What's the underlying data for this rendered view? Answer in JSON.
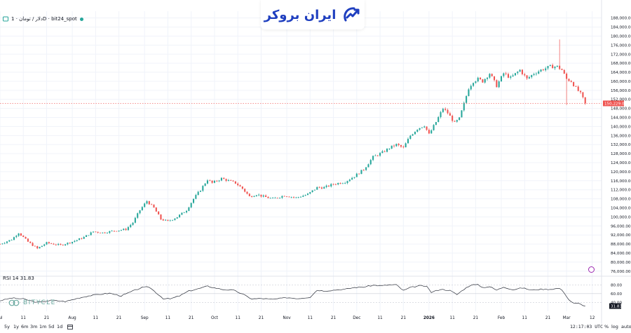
{
  "header": {
    "symbol_text": "دلار / تومان · 1D · bit24_spot",
    "logo_text": "ایران بروکر"
  },
  "watermark": {
    "text": "BITYCLE"
  },
  "indicator": {
    "label": "RSI 14",
    "value": "31.83",
    "levels": [
      80,
      60,
      40
    ]
  },
  "timeframes": [
    "5y",
    "1y",
    "6m",
    "3m",
    "1m",
    "5d",
    "1d"
  ],
  "status": {
    "clock": "12:17:03 UTC",
    "percent": "%",
    "log": "log",
    "auto": "auto"
  },
  "colors": {
    "up": "#26a69a",
    "down": "#ef5350",
    "rsi_line": "#2a2e39",
    "grid": "#f0f3fa"
  },
  "chart_data": {
    "type": "candlestick",
    "ylim": [
      75000,
      191000
    ],
    "y_ticks": [
      76000,
      80000,
      84000,
      88000,
      92000,
      96000,
      100000,
      104000,
      108000,
      112000,
      116000,
      120000,
      124000,
      128000,
      132000,
      136000,
      140000,
      144000,
      148000,
      152000,
      156000,
      160000,
      164000,
      168000,
      172000,
      176000,
      180000,
      184000,
      188000
    ],
    "y_tick_labels": [
      "76,000.00",
      "80,000.00",
      "84,000.00",
      "88,000.00",
      "92,000.00",
      "96,000.00",
      "100,000.00",
      "104,000.00",
      "108,000.00",
      "112,000.00",
      "116,000.00",
      "120,000.00",
      "124,000.00",
      "128,000.00",
      "132,000.00",
      "136,000.00",
      "140,000.00",
      "144,000.00",
      "148,000.00",
      "152,000.00",
      "156,000.00",
      "160,000.00",
      "164,000.00",
      "168,000.00",
      "172,000.00",
      "176,000.00",
      "180,000.00",
      "184,000.00",
      "188,000.00"
    ],
    "x_ticks": [
      {
        "label": "Jul",
        "day": 0
      },
      {
        "label": "11",
        "day": 10
      },
      {
        "label": "21",
        "day": 20
      },
      {
        "label": "Aug",
        "day": 31
      },
      {
        "label": "11",
        "day": 41
      },
      {
        "label": "21",
        "day": 51
      },
      {
        "label": "Sep",
        "day": 62
      },
      {
        "label": "11",
        "day": 72
      },
      {
        "label": "21",
        "day": 82
      },
      {
        "label": "Oct",
        "day": 92
      },
      {
        "label": "11",
        "day": 102
      },
      {
        "label": "21",
        "day": 112
      },
      {
        "label": "Nov",
        "day": 123
      },
      {
        "label": "11",
        "day": 133
      },
      {
        "label": "21",
        "day": 143
      },
      {
        "label": "Dec",
        "day": 153
      },
      {
        "label": "11",
        "day": 163
      },
      {
        "label": "21",
        "day": 173
      },
      {
        "label": "2026",
        "day": 184
      },
      {
        "label": "11",
        "day": 194
      },
      {
        "label": "21",
        "day": 204
      },
      {
        "label": "Feb",
        "day": 215
      },
      {
        "label": "11",
        "day": 225
      },
      {
        "label": "21",
        "day": 235
      },
      {
        "label": "Mar",
        "day": 243
      },
      {
        "label": "12",
        "day": 254
      }
    ],
    "last_price": 150229,
    "last_price_label": "150,229.00",
    "anchors": [
      [
        0,
        88000
      ],
      [
        5,
        90000
      ],
      [
        8,
        93000
      ],
      [
        12,
        89000
      ],
      [
        16,
        86000
      ],
      [
        20,
        88500
      ],
      [
        26,
        87500
      ],
      [
        31,
        89000
      ],
      [
        36,
        91000
      ],
      [
        40,
        93500
      ],
      [
        44,
        93000
      ],
      [
        50,
        94000
      ],
      [
        54,
        94500
      ],
      [
        57,
        97500
      ],
      [
        60,
        103000
      ],
      [
        63,
        107000
      ],
      [
        66,
        104000
      ],
      [
        69,
        99000
      ],
      [
        72,
        98000
      ],
      [
        76,
        100000
      ],
      [
        80,
        103000
      ],
      [
        83,
        108000
      ],
      [
        86,
        112000
      ],
      [
        89,
        116500
      ],
      [
        91,
        115000
      ],
      [
        95,
        117000
      ],
      [
        98,
        116000
      ],
      [
        101,
        115000
      ],
      [
        104,
        112500
      ],
      [
        107,
        109000
      ],
      [
        110,
        110000
      ],
      [
        113,
        109000
      ],
      [
        117,
        108000
      ],
      [
        122,
        109500
      ],
      [
        127,
        108500
      ],
      [
        132,
        110000
      ],
      [
        136,
        113000
      ],
      [
        139,
        113000
      ],
      [
        143,
        114500
      ],
      [
        148,
        115500
      ],
      [
        152,
        118000
      ],
      [
        156,
        121000
      ],
      [
        160,
        126500
      ],
      [
        164,
        128500
      ],
      [
        167,
        130500
      ],
      [
        170,
        132000
      ],
      [
        173,
        130500
      ],
      [
        176,
        136000
      ],
      [
        179,
        139000
      ],
      [
        182,
        140500
      ],
      [
        184,
        136500
      ],
      [
        187,
        142000
      ],
      [
        190,
        148000
      ],
      [
        192,
        146000
      ],
      [
        195,
        141500
      ],
      [
        197,
        143500
      ],
      [
        199,
        150000
      ],
      [
        201,
        157000
      ],
      [
        203,
        160000
      ],
      [
        205,
        161000
      ],
      [
        207,
        160000
      ],
      [
        210,
        163500
      ],
      [
        213,
        158000
      ],
      [
        216,
        163500
      ],
      [
        219,
        161500
      ],
      [
        223,
        165000
      ],
      [
        226,
        161000
      ],
      [
        229,
        163500
      ],
      [
        232,
        165000
      ],
      [
        236,
        166500
      ],
      [
        239,
        166500
      ],
      [
        241,
        165000
      ],
      [
        243,
        161000
      ],
      [
        245,
        160000
      ],
      [
        247,
        157000
      ],
      [
        249,
        154500
      ],
      [
        251,
        150229
      ]
    ],
    "spikes": [
      {
        "day": 240,
        "high": 178500,
        "low": 165000
      },
      {
        "day": 243,
        "high": 163000,
        "low": 149500
      }
    ],
    "rsi_anchors": [
      [
        0,
        44
      ],
      [
        5,
        50
      ],
      [
        10,
        48
      ],
      [
        16,
        40
      ],
      [
        22,
        45
      ],
      [
        28,
        42
      ],
      [
        33,
        49
      ],
      [
        38,
        55
      ],
      [
        42,
        58
      ],
      [
        47,
        61
      ],
      [
        52,
        55
      ],
      [
        57,
        66
      ],
      [
        61,
        74
      ],
      [
        64,
        75
      ],
      [
        67,
        62
      ],
      [
        70,
        49
      ],
      [
        73,
        48
      ],
      [
        77,
        55
      ],
      [
        81,
        66
      ],
      [
        85,
        71
      ],
      [
        89,
        77
      ],
      [
        92,
        73
      ],
      [
        96,
        69
      ],
      [
        100,
        68
      ],
      [
        104,
        59
      ],
      [
        108,
        48
      ],
      [
        112,
        49
      ],
      [
        117,
        47
      ],
      [
        123,
        51
      ],
      [
        128,
        49
      ],
      [
        133,
        52
      ],
      [
        136,
        68
      ],
      [
        139,
        66
      ],
      [
        143,
        68
      ],
      [
        148,
        70
      ],
      [
        152,
        74
      ],
      [
        156,
        75
      ],
      [
        160,
        79
      ],
      [
        164,
        78
      ],
      [
        167,
        80
      ],
      [
        170,
        80
      ],
      [
        173,
        67
      ],
      [
        176,
        74
      ],
      [
        180,
        78
      ],
      [
        183,
        76
      ],
      [
        185,
        63
      ],
      [
        189,
        70
      ],
      [
        193,
        67
      ],
      [
        196,
        58
      ],
      [
        199,
        70
      ],
      [
        202,
        80
      ],
      [
        205,
        80
      ],
      [
        207,
        74
      ],
      [
        210,
        76
      ],
      [
        213,
        68
      ],
      [
        216,
        75
      ],
      [
        220,
        69
      ],
      [
        224,
        73
      ],
      [
        228,
        68
      ],
      [
        232,
        70
      ],
      [
        236,
        70
      ],
      [
        240,
        72
      ],
      [
        242,
        62
      ],
      [
        244,
        46
      ],
      [
        246,
        38
      ],
      [
        248,
        38
      ],
      [
        250,
        34
      ],
      [
        251,
        31.83
      ]
    ]
  }
}
